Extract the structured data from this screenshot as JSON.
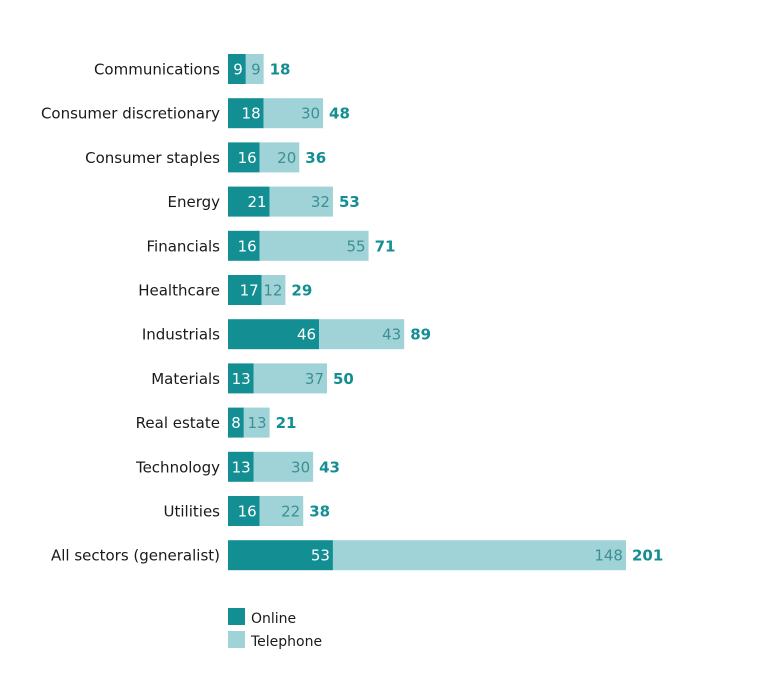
{
  "colors": {
    "online": "#138f94",
    "telephone": "#9fd3d7",
    "online_label": "#ffffff",
    "telephone_label": "#3d8f94",
    "total_label": "#138f94"
  },
  "chart_data": {
    "type": "bar",
    "orientation": "horizontal",
    "stacked": true,
    "title": "",
    "xlabel": "",
    "ylabel": "",
    "grid": false,
    "legend_position": "bottom-left",
    "categories": [
      "Communications",
      "Consumer discretionary",
      "Consumer staples",
      "Energy",
      "Financials",
      "Healthcare",
      "Industrials",
      "Materials",
      "Real estate",
      "Technology",
      "Utilities",
      "All sectors (generalist)"
    ],
    "series": [
      {
        "name": "Online",
        "values": [
          9,
          18,
          16,
          21,
          16,
          17,
          46,
          13,
          8,
          13,
          16,
          53
        ]
      },
      {
        "name": "Telephone",
        "values": [
          9,
          30,
          20,
          32,
          55,
          12,
          43,
          37,
          13,
          30,
          22,
          148
        ]
      }
    ],
    "totals": [
      18,
      48,
      36,
      53,
      71,
      29,
      89,
      50,
      21,
      43,
      38,
      201
    ]
  },
  "legend": {
    "online": "Online",
    "telephone": "Telephone"
  }
}
